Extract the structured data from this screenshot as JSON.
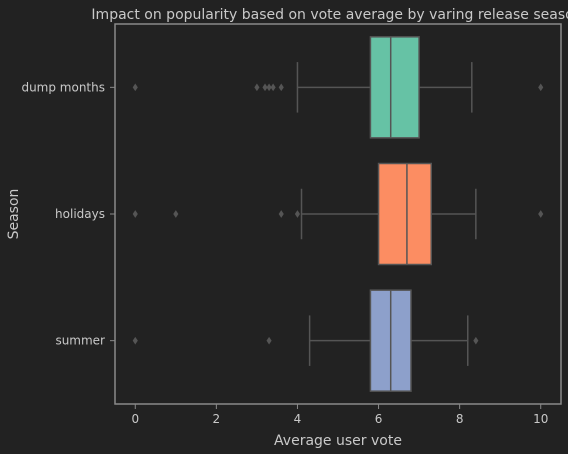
{
  "chart_data": {
    "type": "boxplot",
    "orientation": "horizontal",
    "title": "Impact on popularity based on vote average by varing release season",
    "xlabel": "Average user vote",
    "ylabel": "Season",
    "xlim": [
      -0.5,
      10.5
    ],
    "x_ticks": [
      "0",
      "2",
      "4",
      "6",
      "8",
      "10"
    ],
    "grid": false,
    "legend": "none",
    "categories": [
      "dump months",
      "holidays",
      "summer"
    ],
    "series": [
      {
        "category": "dump months",
        "color": "#66c2a5",
        "whisker_low": 4.0,
        "q1": 5.8,
        "median": 6.3,
        "q3": 7.0,
        "whisker_high": 8.3,
        "outliers": [
          0,
          3.0,
          3.2,
          3.3,
          3.4,
          3.6,
          10
        ]
      },
      {
        "category": "holidays",
        "color": "#fc8d62",
        "whisker_low": 4.1,
        "q1": 6.0,
        "median": 6.7,
        "q3": 7.3,
        "whisker_high": 8.4,
        "outliers": [
          0,
          1.0,
          3.6,
          4.0,
          10
        ]
      },
      {
        "category": "summer",
        "color": "#8da0cb",
        "whisker_low": 4.3,
        "q1": 5.8,
        "median": 6.3,
        "q3": 6.8,
        "whisker_high": 8.2,
        "outliers": [
          0,
          3.3,
          8.4
        ]
      }
    ]
  },
  "colors": {
    "background": "#222222",
    "axis_frame": "#8a8a8a",
    "line": "#555555",
    "text": "#c9c9c9"
  }
}
